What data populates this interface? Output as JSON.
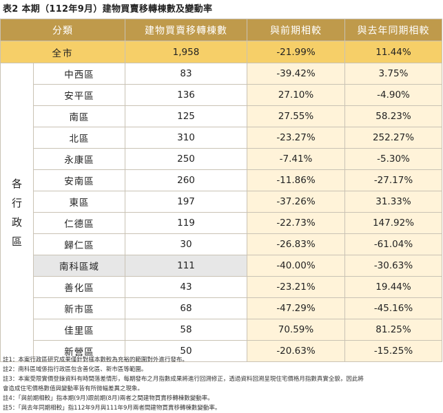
{
  "title": "表2 本期（112年9月）建物買賣移轉棟數及變動率",
  "headers": {
    "category": "分類",
    "count": "建物買賣移轉棟數",
    "mom": "與前期相較",
    "yoy": "與去年同期相較"
  },
  "total": {
    "name": "全市",
    "count": "1,958",
    "mom": "-21.99%",
    "yoy": "11.44%"
  },
  "side_label": "各行政區",
  "rows": [
    {
      "name": "中西區",
      "count": "83",
      "mom": "-39.42%",
      "yoy": "3.75%"
    },
    {
      "name": "安平區",
      "count": "136",
      "mom": "27.10%",
      "yoy": "-4.90%"
    },
    {
      "name": "南區",
      "count": "125",
      "mom": "27.55%",
      "yoy": "58.23%"
    },
    {
      "name": "北區",
      "count": "310",
      "mom": "-23.27%",
      "yoy": "252.27%"
    },
    {
      "name": "永康區",
      "count": "250",
      "mom": "-7.41%",
      "yoy": "-5.30%"
    },
    {
      "name": "安南區",
      "count": "260",
      "mom": "-11.86%",
      "yoy": "-27.17%"
    },
    {
      "name": "東區",
      "count": "197",
      "mom": "-37.26%",
      "yoy": "31.33%"
    },
    {
      "name": "仁德區",
      "count": "119",
      "mom": "-22.73%",
      "yoy": "147.92%"
    },
    {
      "name": "歸仁區",
      "count": "30",
      "mom": "-26.83%",
      "yoy": "-61.04%"
    },
    {
      "name": "南科區域",
      "count": "111",
      "mom": "-40.00%",
      "yoy": "-30.63%"
    },
    {
      "name": "善化區",
      "count": "43",
      "mom": "-23.21%",
      "yoy": "19.44%"
    },
    {
      "name": "新市區",
      "count": "68",
      "mom": "-47.29%",
      "yoy": "-45.16%"
    },
    {
      "name": "佳里區",
      "count": "58",
      "mom": "70.59%",
      "yoy": "81.25%"
    },
    {
      "name": "新營區",
      "count": "50",
      "mom": "-20.63%",
      "yoy": "-15.25%"
    }
  ],
  "notes": [
    "註1：本案行政區研究成果僅針對樣本數較為充裕的範圍對外進行發布。",
    "註2：南科區域係指行政區包含善化區、新市區等範圍。",
    "註3：本案受限實價登錄資料有時間落差情形，每期發布之月指數成果將進行回溯修正，透過資料回溯呈現住宅價格月指數真實全貌，因此將",
    "會造成住宅價格數值與變動率皆有所微幅差異之現象。",
    "註4：「與前期相較」指本期(9月)跟前期(8月)兩者之間建物買賣移轉棟數變動率。",
    "註5：「與去年同期相較」指112年9月與111年9月兩者間建物買賣移轉棟數變動率。"
  ]
}
